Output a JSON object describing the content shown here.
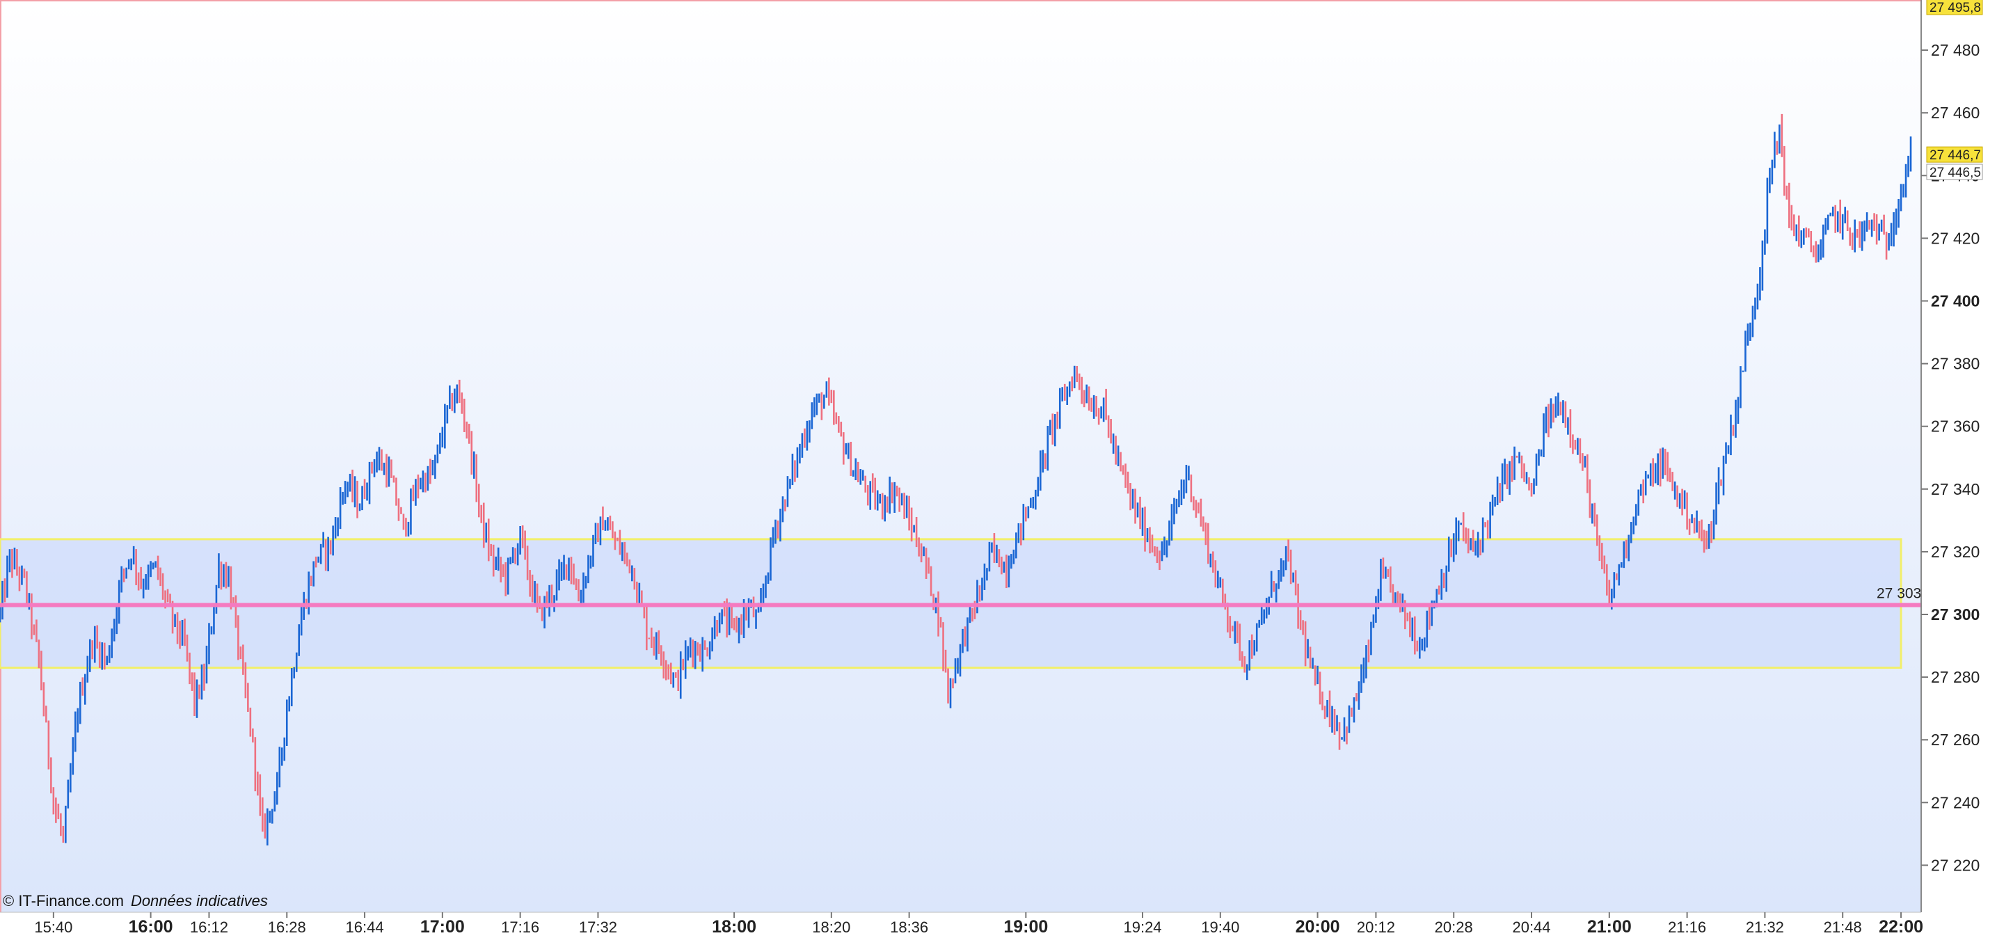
{
  "footer": {
    "copyright": "© IT-Finance.com",
    "disclaimer": "Données indicatives"
  },
  "colors": {
    "up": "#1a66d4",
    "down": "#ee7080",
    "level_line": "#f57ac0",
    "zone_fill": "#cfdcfb",
    "zone_border": "#f2ef6a",
    "bg_top": "#ffffff",
    "bg_bottom": "#dbe6fb",
    "badge_fill": "#f7e23b"
  },
  "chart_data": {
    "type": "candlestick",
    "instrument_note": "",
    "ylim": [
      27205,
      27496
    ],
    "y_ticks": [
      {
        "value": 27220,
        "label": "27 220",
        "bold": false
      },
      {
        "value": 27240,
        "label": "27 240",
        "bold": false
      },
      {
        "value": 27260,
        "label": "27 260",
        "bold": false
      },
      {
        "value": 27280,
        "label": "27 280",
        "bold": false
      },
      {
        "value": 27300,
        "label": "27 300",
        "bold": true
      },
      {
        "value": 27320,
        "label": "27 320",
        "bold": false
      },
      {
        "value": 27340,
        "label": "27 340",
        "bold": false
      },
      {
        "value": 27360,
        "label": "27 360",
        "bold": false
      },
      {
        "value": 27380,
        "label": "27 380",
        "bold": false
      },
      {
        "value": 27400,
        "label": "27 400",
        "bold": true
      },
      {
        "value": 27420,
        "label": "27 420",
        "bold": false
      },
      {
        "value": 27440,
        "label": "27 440",
        "bold": false
      },
      {
        "value": 27460,
        "label": "27 460",
        "bold": false
      },
      {
        "value": 27480,
        "label": "27 480",
        "bold": false
      }
    ],
    "x_range": [
      "15:29",
      "22:04"
    ],
    "x_ticks": [
      {
        "time": "15:40",
        "label": "15:40",
        "bold": false
      },
      {
        "time": "16:00",
        "label": "16:00",
        "bold": true
      },
      {
        "time": "16:12",
        "label": "16:12",
        "bold": false
      },
      {
        "time": "16:28",
        "label": "16:28",
        "bold": false
      },
      {
        "time": "16:44",
        "label": "16:44",
        "bold": false
      },
      {
        "time": "17:00",
        "label": "17:00",
        "bold": true
      },
      {
        "time": "17:16",
        "label": "17:16",
        "bold": false
      },
      {
        "time": "17:32",
        "label": "17:32",
        "bold": false
      },
      {
        "time": "18:00",
        "label": "18:00",
        "bold": true
      },
      {
        "time": "18:20",
        "label": "18:20",
        "bold": false
      },
      {
        "time": "18:36",
        "label": "18:36",
        "bold": false
      },
      {
        "time": "19:00",
        "label": "19:00",
        "bold": true
      },
      {
        "time": "19:24",
        "label": "19:24",
        "bold": false
      },
      {
        "time": "19:40",
        "label": "19:40",
        "bold": false
      },
      {
        "time": "20:00",
        "label": "20:00",
        "bold": true
      },
      {
        "time": "20:12",
        "label": "20:12",
        "bold": false
      },
      {
        "time": "20:28",
        "label": "20:28",
        "bold": false
      },
      {
        "time": "20:44",
        "label": "20:44",
        "bold": false
      },
      {
        "time": "21:00",
        "label": "21:00",
        "bold": true
      },
      {
        "time": "21:16",
        "label": "21:16",
        "bold": false
      },
      {
        "time": "21:32",
        "label": "21:32",
        "bold": false
      },
      {
        "time": "21:48",
        "label": "21:48",
        "bold": false
      },
      {
        "time": "22:00",
        "label": "22:00",
        "bold": true
      }
    ],
    "price_path": [
      [
        "15:29",
        27300
      ],
      [
        "15:31",
        27318
      ],
      [
        "15:34",
        27310
      ],
      [
        "15:37",
        27285
      ],
      [
        "15:40",
        27240
      ],
      [
        "15:42",
        27228
      ],
      [
        "15:45",
        27270
      ],
      [
        "15:48",
        27292
      ],
      [
        "15:51",
        27285
      ],
      [
        "15:54",
        27312
      ],
      [
        "15:56",
        27320
      ],
      [
        "15:58",
        27310
      ],
      [
        "16:01",
        27315
      ],
      [
        "16:04",
        27300
      ],
      [
        "16:07",
        27290
      ],
      [
        "16:09",
        27272
      ],
      [
        "16:11",
        27280
      ],
      [
        "16:14",
        27315
      ],
      [
        "16:16",
        27312
      ],
      [
        "16:18",
        27290
      ],
      [
        "16:21",
        27258
      ],
      [
        "16:23",
        27230
      ],
      [
        "16:26",
        27245
      ],
      [
        "16:28",
        27270
      ],
      [
        "16:31",
        27300
      ],
      [
        "16:34",
        27318
      ],
      [
        "16:37",
        27322
      ],
      [
        "16:40",
        27342
      ],
      [
        "16:43",
        27335
      ],
      [
        "16:46",
        27350
      ],
      [
        "16:49",
        27345
      ],
      [
        "16:52",
        27327
      ],
      [
        "16:55",
        27342
      ],
      [
        "16:58",
        27345
      ],
      [
        "17:01",
        27365
      ],
      [
        "17:03",
        27371
      ],
      [
        "17:05",
        27360
      ],
      [
        "17:08",
        27330
      ],
      [
        "17:10",
        27318
      ],
      [
        "17:13",
        27312
      ],
      [
        "17:16",
        27325
      ],
      [
        "17:18",
        27310
      ],
      [
        "17:20",
        27300
      ],
      [
        "17:23",
        27308
      ],
      [
        "17:26",
        27318
      ],
      [
        "17:28",
        27305
      ],
      [
        "17:31",
        27322
      ],
      [
        "17:33",
        27330
      ],
      [
        "17:36",
        27322
      ],
      [
        "17:39",
        27315
      ],
      [
        "17:42",
        27295
      ],
      [
        "17:45",
        27288
      ],
      [
        "17:48",
        27278
      ],
      [
        "17:51",
        27290
      ],
      [
        "17:54",
        27288
      ],
      [
        "17:57",
        27300
      ],
      [
        "18:00",
        27295
      ],
      [
        "18:03",
        27302
      ],
      [
        "18:05",
        27298
      ],
      [
        "18:08",
        27325
      ],
      [
        "18:11",
        27340
      ],
      [
        "18:14",
        27355
      ],
      [
        "18:16",
        27365
      ],
      [
        "18:19",
        27370
      ],
      [
        "18:21",
        27360
      ],
      [
        "18:24",
        27348
      ],
      [
        "18:27",
        27340
      ],
      [
        "18:30",
        27335
      ],
      [
        "18:33",
        27340
      ],
      [
        "18:36",
        27330
      ],
      [
        "18:39",
        27318
      ],
      [
        "18:42",
        27300
      ],
      [
        "18:44",
        27275
      ],
      [
        "18:47",
        27292
      ],
      [
        "18:50",
        27305
      ],
      [
        "18:53",
        27320
      ],
      [
        "18:56",
        27315
      ],
      [
        "18:59",
        27328
      ],
      [
        "19:02",
        27340
      ],
      [
        "19:05",
        27358
      ],
      [
        "19:08",
        27370
      ],
      [
        "19:10",
        27377
      ],
      [
        "19:13",
        27368
      ],
      [
        "19:16",
        27365
      ],
      [
        "19:19",
        27348
      ],
      [
        "19:22",
        27335
      ],
      [
        "19:25",
        27325
      ],
      [
        "19:28",
        27318
      ],
      [
        "19:31",
        27335
      ],
      [
        "19:33",
        27345
      ],
      [
        "19:36",
        27330
      ],
      [
        "19:39",
        27312
      ],
      [
        "19:42",
        27298
      ],
      [
        "19:45",
        27285
      ],
      [
        "19:48",
        27295
      ],
      [
        "19:51",
        27310
      ],
      [
        "19:54",
        27318
      ],
      [
        "19:56",
        27300
      ],
      [
        "19:59",
        27280
      ],
      [
        "20:02",
        27270
      ],
      [
        "20:05",
        27262
      ],
      [
        "20:07",
        27268
      ],
      [
        "20:10",
        27285
      ],
      [
        "20:13",
        27312
      ],
      [
        "20:15",
        27308
      ],
      [
        "20:18",
        27300
      ],
      [
        "20:21",
        27290
      ],
      [
        "20:24",
        27305
      ],
      [
        "20:27",
        27318
      ],
      [
        "20:29",
        27328
      ],
      [
        "20:32",
        27320
      ],
      [
        "20:35",
        27330
      ],
      [
        "20:38",
        27342
      ],
      [
        "20:41",
        27350
      ],
      [
        "20:44",
        27338
      ],
      [
        "20:47",
        27362
      ],
      [
        "20:50",
        27367
      ],
      [
        "20:52",
        27360
      ],
      [
        "20:55",
        27345
      ],
      [
        "20:58",
        27318
      ],
      [
        "21:00",
        27305
      ],
      [
        "21:03",
        27320
      ],
      [
        "21:06",
        27338
      ],
      [
        "21:09",
        27345
      ],
      [
        "21:11",
        27348
      ],
      [
        "21:14",
        27338
      ],
      [
        "21:17",
        27330
      ],
      [
        "21:20",
        27322
      ],
      [
        "21:23",
        27345
      ],
      [
        "21:26",
        27365
      ],
      [
        "21:28",
        27385
      ],
      [
        "21:31",
        27410
      ],
      [
        "21:33",
        27440
      ],
      [
        "21:35",
        27455
      ],
      [
        "21:37",
        27425
      ],
      [
        "21:40",
        27420
      ],
      [
        "21:43",
        27415
      ],
      [
        "21:46",
        27428
      ],
      [
        "21:48",
        27425
      ],
      [
        "21:51",
        27420
      ],
      [
        "21:54",
        27425
      ],
      [
        "21:57",
        27418
      ],
      [
        "21:59",
        27430
      ],
      [
        "22:02",
        27446
      ]
    ],
    "support_zone": {
      "from_time": "15:29",
      "to_time": "22:00",
      "low": 27283,
      "high": 27324
    },
    "level_line": {
      "value": 27303,
      "label": "27 303"
    },
    "price_badges": [
      {
        "value": 27495.8,
        "label": "27 495,8",
        "style": "yellow"
      },
      {
        "value": 27446.7,
        "label": "27 446,7",
        "style": "yellow"
      },
      {
        "value": 27446.5,
        "label": "27 446,5",
        "style": "white"
      }
    ]
  }
}
